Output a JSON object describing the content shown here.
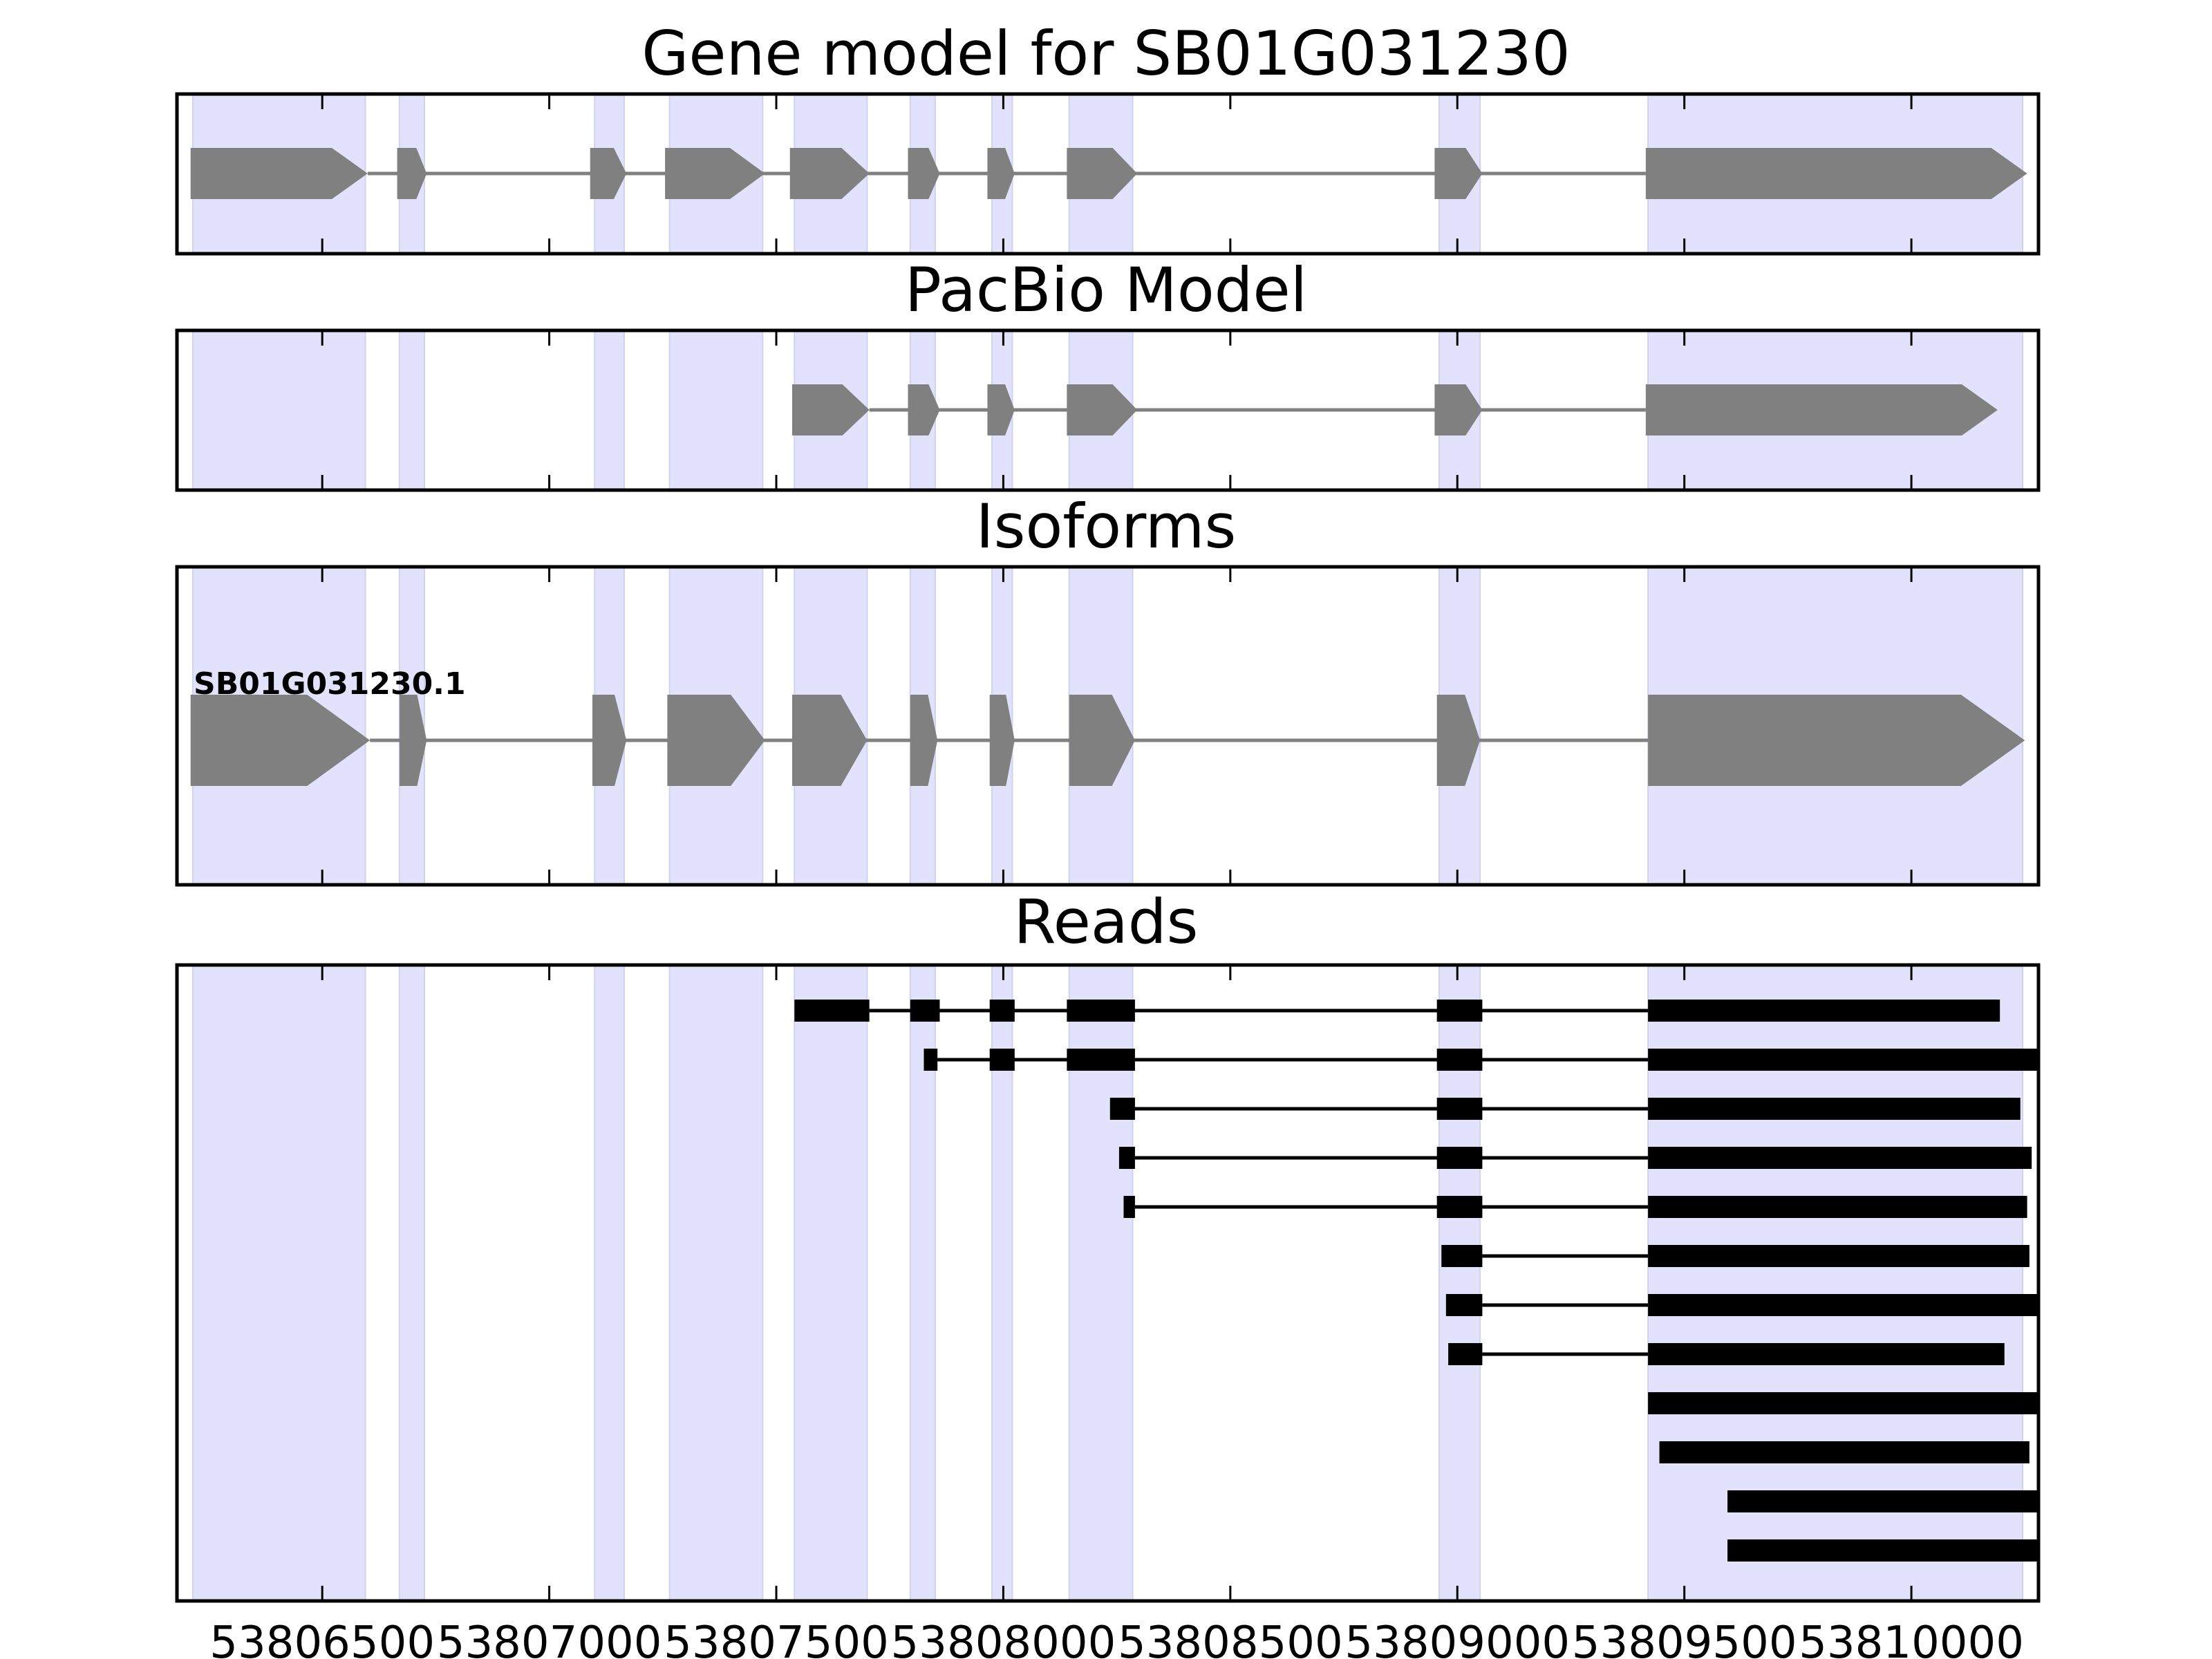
{
  "chart_data": {
    "type": "gene-structure",
    "x_axis": {
      "range": [
        53806180,
        53810280
      ],
      "ticks": [
        53806500,
        53807000,
        53807500,
        53808000,
        53808500,
        53809000,
        53809500,
        53810000
      ],
      "tick_labels": [
        "53806500",
        "53807000",
        "53807500",
        "53808000",
        "53808500",
        "53809000",
        "53809500",
        "53810000"
      ]
    },
    "highlight_color": "#e2e2fc",
    "feature_color": "#808080",
    "read_color": "#000000",
    "exon_highlights": [
      [
        53806215,
        53806595
      ],
      [
        53806670,
        53806725
      ],
      [
        53807100,
        53807165
      ],
      [
        53807265,
        53807470
      ],
      [
        53807540,
        53807700
      ],
      [
        53807795,
        53807850
      ],
      [
        53807975,
        53808020
      ],
      [
        53808145,
        53808285
      ],
      [
        53808960,
        53809050
      ],
      [
        53809420,
        53810245
      ]
    ],
    "panels": [
      {
        "title": "Gene model for SB01G031230",
        "exons": [
          [
            53806210,
            53806600
          ],
          [
            53806665,
            53806730
          ],
          [
            53807090,
            53807170
          ],
          [
            53807255,
            53807475
          ],
          [
            53807530,
            53807705
          ],
          [
            53807790,
            53807860
          ],
          [
            53807965,
            53808025
          ],
          [
            53808140,
            53808295
          ],
          [
            53808950,
            53809055
          ],
          [
            53809415,
            53810255
          ]
        ]
      },
      {
        "title": "PacBio Model",
        "exons": [
          [
            53807535,
            53807705
          ],
          [
            53807790,
            53807860
          ],
          [
            53807965,
            53808025
          ],
          [
            53808140,
            53808295
          ],
          [
            53808950,
            53809055
          ],
          [
            53809415,
            53810190
          ]
        ]
      },
      {
        "title": "Isoforms",
        "isoforms": [
          {
            "name": "SB01G031230.1",
            "exons": [
              [
                53806210,
                53806605
              ],
              [
                53806670,
                53806730
              ],
              [
                53807095,
                53807170
              ],
              [
                53807260,
                53807475
              ],
              [
                53807535,
                53807700
              ],
              [
                53807795,
                53807855
              ],
              [
                53807970,
                53808025
              ],
              [
                53808145,
                53808290
              ],
              [
                53808955,
                53809050
              ],
              [
                53809420,
                53810250
              ]
            ]
          }
        ]
      },
      {
        "title": "Reads",
        "reads": [
          [
            [
              53807540,
              53807705
            ],
            [
              53807795,
              53807860
            ],
            [
              53807970,
              53808025
            ],
            [
              53808140,
              53808290
            ],
            [
              53808955,
              53809055
            ],
            [
              53809420,
              53810195
            ]
          ],
          [
            [
              53807825,
              53807855
            ],
            [
              53807970,
              53808025
            ],
            [
              53808140,
              53808290
            ],
            [
              53808955,
              53809055
            ],
            [
              53809420,
              53810280
            ]
          ],
          [
            [
              53808235,
              53808290
            ],
            [
              53808955,
              53809055
            ],
            [
              53809420,
              53810240
            ]
          ],
          [
            [
              53808255,
              53808290
            ],
            [
              53808955,
              53809055
            ],
            [
              53809420,
              53810265
            ]
          ],
          [
            [
              53808265,
              53808290
            ],
            [
              53808955,
              53809055
            ],
            [
              53809420,
              53810255
            ]
          ],
          [
            [
              53808965,
              53809055
            ],
            [
              53809420,
              53810260
            ]
          ],
          [
            [
              53808975,
              53809055
            ],
            [
              53809420,
              53810285
            ]
          ],
          [
            [
              53808980,
              53809055
            ],
            [
              53809420,
              53810205
            ]
          ],
          [
            [
              53809420,
              53810285
            ]
          ],
          [
            [
              53809445,
              53810260
            ]
          ],
          [
            [
              53809595,
              53810285
            ]
          ],
          [
            [
              53809595,
              53810285
            ]
          ]
        ]
      }
    ]
  }
}
